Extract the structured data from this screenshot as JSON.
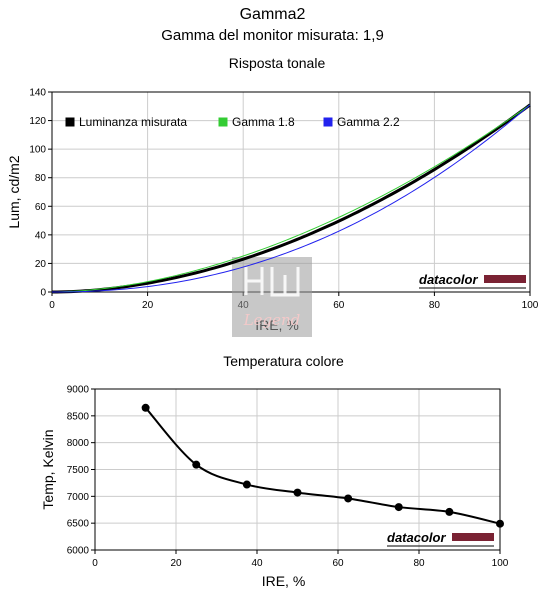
{
  "header": {
    "title": "Gamma2",
    "subtitle": "Gamma del monitor misurata: 1,9"
  },
  "brand": {
    "text": "datacolor",
    "color": "#7a2233"
  },
  "watermark": {
    "text": "Legend",
    "color": "#f3c9c9"
  },
  "colors": {
    "measured": "#000000",
    "gamma18": "#33cc33",
    "gamma22": "#2222ee",
    "grid": "#cccccc",
    "temperature": "#000000"
  },
  "chart_data": [
    {
      "type": "line",
      "title": "Risposta tonale",
      "xlabel": "IRE, %",
      "ylabel": "Lum, cd/m2",
      "xlim": [
        0,
        100
      ],
      "ylim": [
        0,
        140
      ],
      "xticks": [
        0,
        20,
        40,
        60,
        80,
        100
      ],
      "yticks": [
        0,
        20,
        40,
        60,
        80,
        100,
        120,
        140
      ],
      "grid": true,
      "legend_position": "top",
      "series": [
        {
          "name": "Luminanza misurata",
          "gamma": 1.9,
          "color": "#000000",
          "width": 3,
          "x": [
            0,
            10,
            20,
            30,
            40,
            50,
            60,
            70,
            80,
            90,
            100
          ],
          "y": [
            0,
            1.66,
            6.0,
            13.0,
            23.0,
            35.5,
            49.5,
            66.0,
            84.5,
            106.0,
            131.0
          ]
        },
        {
          "name": "Gamma 1.8",
          "gamma": 1.8,
          "color": "#33cc33",
          "width": 1,
          "x": [
            0,
            10,
            20,
            30,
            40,
            50,
            60,
            70,
            80,
            90,
            100
          ],
          "y": [
            0,
            2.08,
            7.2,
            15.1,
            25.3,
            37.6,
            52.2,
            68.8,
            87.5,
            108.4,
            131.0
          ]
        },
        {
          "name": "Gamma 2.2",
          "gamma": 2.2,
          "color": "#2222ee",
          "width": 1,
          "x": [
            0,
            10,
            20,
            30,
            40,
            50,
            60,
            70,
            80,
            90,
            100
          ],
          "y": [
            0,
            0.83,
            3.8,
            9.1,
            17.4,
            28.5,
            42.6,
            59.6,
            79.6,
            103.9,
            131.0
          ]
        }
      ]
    },
    {
      "type": "line",
      "title": "Temperatura colore",
      "xlabel": "IRE, %",
      "ylabel": "Temp, Kelvin",
      "xlim": [
        0,
        100
      ],
      "ylim": [
        6000,
        9000
      ],
      "xticks": [
        0,
        20,
        40,
        60,
        80,
        100
      ],
      "yticks": [
        6000,
        6500,
        7000,
        7500,
        8000,
        8500,
        9000
      ],
      "grid": true,
      "series": [
        {
          "name": "",
          "color": "#000000",
          "x": [
            12.5,
            25,
            37.5,
            50,
            62.5,
            75,
            87.5,
            100
          ],
          "y": [
            8650,
            7590,
            7220,
            7070,
            6960,
            6800,
            6710,
            6490
          ]
        }
      ]
    }
  ]
}
